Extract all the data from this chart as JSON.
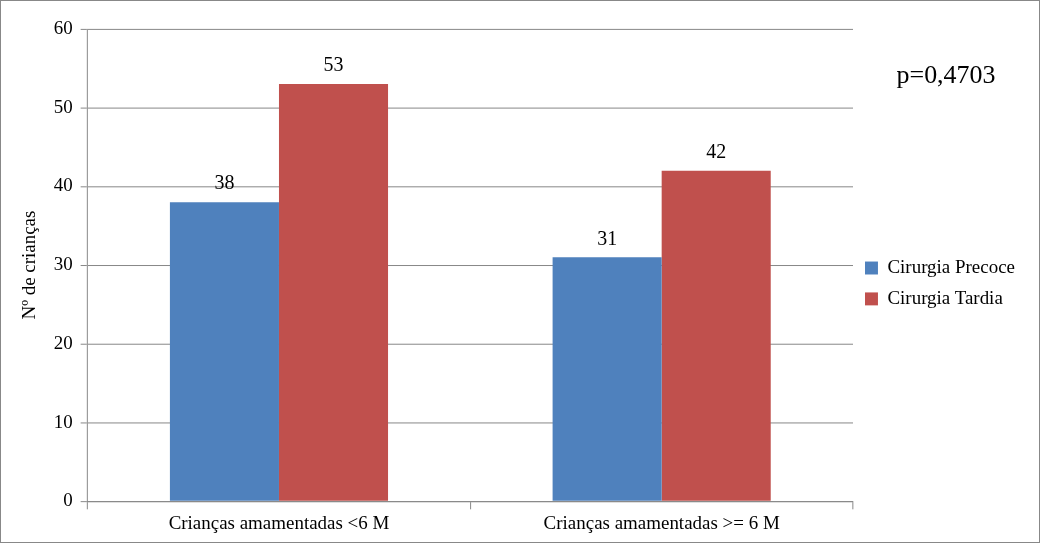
{
  "chart_data": {
    "type": "bar",
    "ylabel": "Nº de crianças",
    "categories": [
      "Crianças amamentadas <6 M",
      "Crianças amamentadas >= 6 M"
    ],
    "series": [
      {
        "name": "Cirurgia Precoce",
        "color": "#4f81bd",
        "values": [
          38,
          31
        ]
      },
      {
        "name": "Cirurgia Tardia",
        "color": "#c0504d",
        "values": [
          53,
          42
        ]
      }
    ],
    "ylim": [
      0,
      60
    ],
    "yticks": [
      0,
      10,
      20,
      30,
      40,
      50,
      60
    ],
    "grid": "y",
    "legend": "right",
    "data_labels": true,
    "annotations": [
      "p=0,4703"
    ]
  }
}
